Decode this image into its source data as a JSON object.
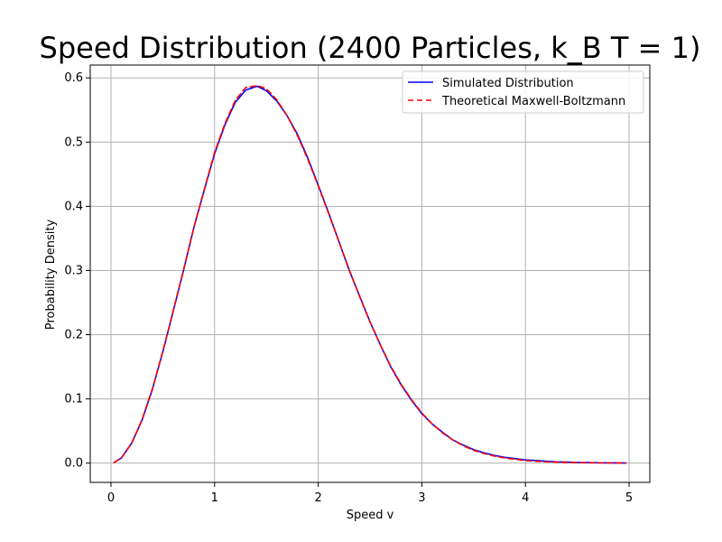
{
  "chart_data": {
    "type": "line",
    "title": "Speed Distribution (2400 Particles, k_B T = 1)",
    "xlabel": "Speed v",
    "ylabel": "Probability Density",
    "xlim": [
      -0.2,
      5.2
    ],
    "ylim": [
      -0.03,
      0.62
    ],
    "x_ticks": [
      0,
      1,
      2,
      3,
      4,
      5
    ],
    "y_ticks": [
      0.0,
      0.1,
      0.2,
      0.3,
      0.4,
      0.5,
      0.6
    ],
    "x_tick_labels": [
      "0",
      "1",
      "2",
      "3",
      "4",
      "5"
    ],
    "y_tick_labels": [
      "0.0",
      "0.1",
      "0.2",
      "0.3",
      "0.4",
      "0.5",
      "0.6"
    ],
    "grid": true,
    "legend_position": "top-right",
    "colors": {
      "simulated": "#0000ff",
      "theoretical": "#ff0000",
      "grid": "#b0b0b0",
      "axis": "#000000"
    },
    "series": [
      {
        "name": "Simulated Distribution",
        "style": "solid",
        "x": [
          0.03,
          0.1,
          0.2,
          0.3,
          0.4,
          0.5,
          0.6,
          0.7,
          0.8,
          0.9,
          1.0,
          1.1,
          1.2,
          1.3,
          1.41,
          1.5,
          1.6,
          1.7,
          1.8,
          1.9,
          2.0,
          2.1,
          2.2,
          2.3,
          2.4,
          2.5,
          2.6,
          2.7,
          2.8,
          2.9,
          3.0,
          3.1,
          3.2,
          3.3,
          3.4,
          3.5,
          3.6,
          3.7,
          3.8,
          3.9,
          4.0,
          4.1,
          4.2,
          4.3,
          4.4,
          4.5,
          4.6,
          4.7,
          4.8,
          4.9,
          4.97
        ],
        "y": [
          0.001,
          0.008,
          0.031,
          0.067,
          0.115,
          0.173,
          0.236,
          0.3,
          0.367,
          0.425,
          0.482,
          0.527,
          0.562,
          0.581,
          0.587,
          0.58,
          0.564,
          0.541,
          0.512,
          0.475,
          0.433,
          0.39,
          0.345,
          0.3,
          0.26,
          0.22,
          0.184,
          0.15,
          0.122,
          0.098,
          0.077,
          0.061,
          0.048,
          0.036,
          0.028,
          0.021,
          0.016,
          0.012,
          0.009,
          0.007,
          0.005,
          0.004,
          0.003,
          0.002,
          0.0015,
          0.0011,
          0.0008,
          0.0006,
          0.0004,
          0.0003,
          0.0002
        ]
      },
      {
        "name": "Theoretical Maxwell-Boltzmann",
        "style": "dashed",
        "x": [
          0.03,
          0.1,
          0.2,
          0.3,
          0.4,
          0.5,
          0.6,
          0.7,
          0.8,
          0.9,
          1.0,
          1.1,
          1.2,
          1.3,
          1.414,
          1.5,
          1.6,
          1.7,
          1.8,
          1.9,
          2.0,
          2.1,
          2.2,
          2.3,
          2.4,
          2.5,
          2.6,
          2.7,
          2.8,
          2.9,
          3.0,
          3.1,
          3.2,
          3.3,
          3.4,
          3.5,
          3.6,
          3.7,
          3.8,
          3.9,
          4.0,
          4.1,
          4.2,
          4.3,
          4.4,
          4.5,
          4.6,
          4.7,
          4.8,
          4.9,
          4.97
        ],
        "y": [
          0.001,
          0.008,
          0.031,
          0.068,
          0.116,
          0.174,
          0.237,
          0.301,
          0.367,
          0.426,
          0.484,
          0.529,
          0.565,
          0.585,
          0.588,
          0.583,
          0.566,
          0.541,
          0.51,
          0.473,
          0.432,
          0.389,
          0.345,
          0.301,
          0.259,
          0.22,
          0.184,
          0.151,
          0.123,
          0.099,
          0.078,
          0.061,
          0.047,
          0.036,
          0.027,
          0.02,
          0.015,
          0.011,
          0.008,
          0.006,
          0.004,
          0.003,
          0.002,
          0.0015,
          0.0011,
          0.0008,
          0.0005,
          0.0004,
          0.0003,
          0.0002,
          0.0001
        ]
      }
    ]
  }
}
